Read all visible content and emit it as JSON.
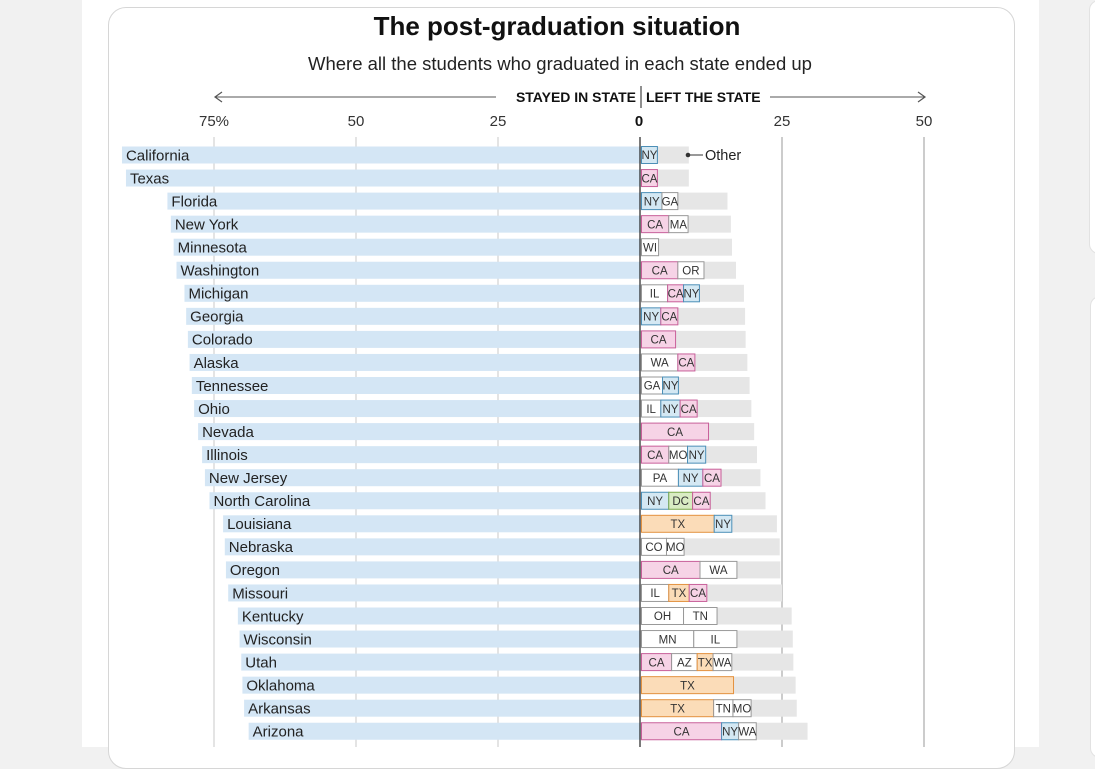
{
  "chart_data": {
    "type": "bar",
    "title": "The post-graduation situation",
    "subtitle": "Where all the students who graduated in each state ended up",
    "left_axis_label": "STAYED IN STATE",
    "right_axis_label": "LEFT THE STATE",
    "zero_label": "0",
    "left_ticks": [
      "75%",
      "50",
      "25"
    ],
    "right_ticks": [
      "25",
      "50"
    ],
    "left_tick_values": [
      75,
      50,
      25
    ],
    "right_tick_values": [
      25,
      50
    ],
    "xlim_left": 80,
    "xlim_right": 50,
    "other_label": "Other",
    "colors": {
      "stayed": "#d4e6f5",
      "other": "#e6e6e6",
      "CA": "#f6d3e6",
      "NY": "#d4e8f3",
      "TX": "#fbdcb8",
      "DC": "#d9ecc3",
      "neutral": "#ffffff",
      "CA_border": "#c8609a",
      "NY_border": "#4c8fb7",
      "TX_border": "#e39240",
      "DC_border": "#7aa84a",
      "neutral_border": "#999999"
    },
    "states": [
      {
        "name": "California",
        "stayed": 91.2,
        "left": 8.6,
        "segments": [
          {
            "code": "NY",
            "value": 2.8
          }
        ]
      },
      {
        "name": "Texas",
        "stayed": 90.5,
        "left": 8.6,
        "segments": [
          {
            "code": "CA",
            "value": 2.8
          }
        ]
      },
      {
        "name": "Florida",
        "stayed": 83.2,
        "left": 15.4,
        "segments": [
          {
            "code": "NY",
            "value": 3.6
          },
          {
            "code": "GA",
            "value": 2.8
          }
        ]
      },
      {
        "name": "New York",
        "stayed": 82.6,
        "left": 16.0,
        "segments": [
          {
            "code": "CA",
            "value": 4.8
          },
          {
            "code": "MA",
            "value": 3.4
          }
        ]
      },
      {
        "name": "Minnesota",
        "stayed": 82.1,
        "left": 16.2,
        "segments": [
          {
            "code": "WI",
            "value": 3.0
          }
        ]
      },
      {
        "name": "Washington",
        "stayed": 81.6,
        "left": 16.9,
        "segments": [
          {
            "code": "CA",
            "value": 6.4
          },
          {
            "code": "OR",
            "value": 4.6
          }
        ]
      },
      {
        "name": "Michigan",
        "stayed": 80.2,
        "left": 18.3,
        "segments": [
          {
            "code": "IL",
            "value": 4.6
          },
          {
            "code": "CA",
            "value": 2.8
          },
          {
            "code": "NY",
            "value": 2.8
          }
        ]
      },
      {
        "name": "Georgia",
        "stayed": 79.9,
        "left": 18.5,
        "segments": [
          {
            "code": "NY",
            "value": 3.4
          },
          {
            "code": "CA",
            "value": 3.0
          }
        ]
      },
      {
        "name": "Colorado",
        "stayed": 79.6,
        "left": 18.6,
        "segments": [
          {
            "code": "CA",
            "value": 6.0
          }
        ]
      },
      {
        "name": "Alaska",
        "stayed": 79.3,
        "left": 18.9,
        "segments": [
          {
            "code": "WA",
            "value": 6.4
          },
          {
            "code": "CA",
            "value": 3.0
          }
        ]
      },
      {
        "name": "Tennessee",
        "stayed": 78.9,
        "left": 19.3,
        "segments": [
          {
            "code": "GA",
            "value": 3.7
          },
          {
            "code": "NY",
            "value": 2.8
          }
        ]
      },
      {
        "name": "Ohio",
        "stayed": 78.5,
        "left": 19.6,
        "segments": [
          {
            "code": "IL",
            "value": 3.4
          },
          {
            "code": "NY",
            "value": 3.4
          },
          {
            "code": "CA",
            "value": 3.0
          }
        ]
      },
      {
        "name": "Nevada",
        "stayed": 77.8,
        "left": 20.1,
        "segments": [
          {
            "code": "CA",
            "value": 11.8
          }
        ]
      },
      {
        "name": "Illinois",
        "stayed": 77.1,
        "left": 20.6,
        "segments": [
          {
            "code": "CA",
            "value": 4.8
          },
          {
            "code": "MO",
            "value": 3.3
          },
          {
            "code": "NY",
            "value": 3.2
          }
        ]
      },
      {
        "name": "New Jersey",
        "stayed": 76.6,
        "left": 21.2,
        "segments": [
          {
            "code": "PA",
            "value": 6.5
          },
          {
            "code": "NY",
            "value": 4.3
          },
          {
            "code": "CA",
            "value": 3.2
          }
        ]
      },
      {
        "name": "North Carolina",
        "stayed": 75.8,
        "left": 22.1,
        "segments": [
          {
            "code": "NY",
            "value": 4.8
          },
          {
            "code": "DC",
            "value": 4.2
          },
          {
            "code": "CA",
            "value": 3.1
          }
        ]
      },
      {
        "name": "Louisiana",
        "stayed": 73.4,
        "left": 24.1,
        "segments": [
          {
            "code": "TX",
            "value": 12.8
          },
          {
            "code": "NY",
            "value": 3.1
          }
        ]
      },
      {
        "name": "Nebraska",
        "stayed": 73.1,
        "left": 24.6,
        "segments": [
          {
            "code": "CO",
            "value": 4.4
          },
          {
            "code": "MO",
            "value": 3.1
          }
        ]
      },
      {
        "name": "Oregon",
        "stayed": 72.9,
        "left": 24.7,
        "segments": [
          {
            "code": "CA",
            "value": 10.3
          },
          {
            "code": "WA",
            "value": 6.5
          }
        ]
      },
      {
        "name": "Missouri",
        "stayed": 72.5,
        "left": 25.0,
        "segments": [
          {
            "code": "IL",
            "value": 4.8
          },
          {
            "code": "TX",
            "value": 3.6
          },
          {
            "code": "CA",
            "value": 3.1
          }
        ]
      },
      {
        "name": "Kentucky",
        "stayed": 70.8,
        "left": 26.7,
        "segments": [
          {
            "code": "OH",
            "value": 7.4
          },
          {
            "code": "TN",
            "value": 5.9
          }
        ]
      },
      {
        "name": "Wisconsin",
        "stayed": 70.5,
        "left": 26.9,
        "segments": [
          {
            "code": "MN",
            "value": 9.2
          },
          {
            "code": "IL",
            "value": 7.6
          }
        ]
      },
      {
        "name": "Utah",
        "stayed": 70.2,
        "left": 27.0,
        "segments": [
          {
            "code": "CA",
            "value": 5.3
          },
          {
            "code": "AZ",
            "value": 4.5
          },
          {
            "code": "TX",
            "value": 2.8
          },
          {
            "code": "WA",
            "value": 3.3
          }
        ]
      },
      {
        "name": "Oklahoma",
        "stayed": 70.0,
        "left": 27.4,
        "segments": [
          {
            "code": "TX",
            "value": 16.2
          }
        ]
      },
      {
        "name": "Arkansas",
        "stayed": 69.7,
        "left": 27.6,
        "segments": [
          {
            "code": "TX",
            "value": 12.7
          },
          {
            "code": "TN",
            "value": 3.4
          },
          {
            "code": "MO",
            "value": 3.2
          }
        ]
      },
      {
        "name": "Arizona",
        "stayed": 68.9,
        "left": 29.5,
        "segments": [
          {
            "code": "CA",
            "value": 14.1
          },
          {
            "code": "NY",
            "value": 3.0
          },
          {
            "code": "WA",
            "value": 3.1
          }
        ]
      }
    ]
  }
}
